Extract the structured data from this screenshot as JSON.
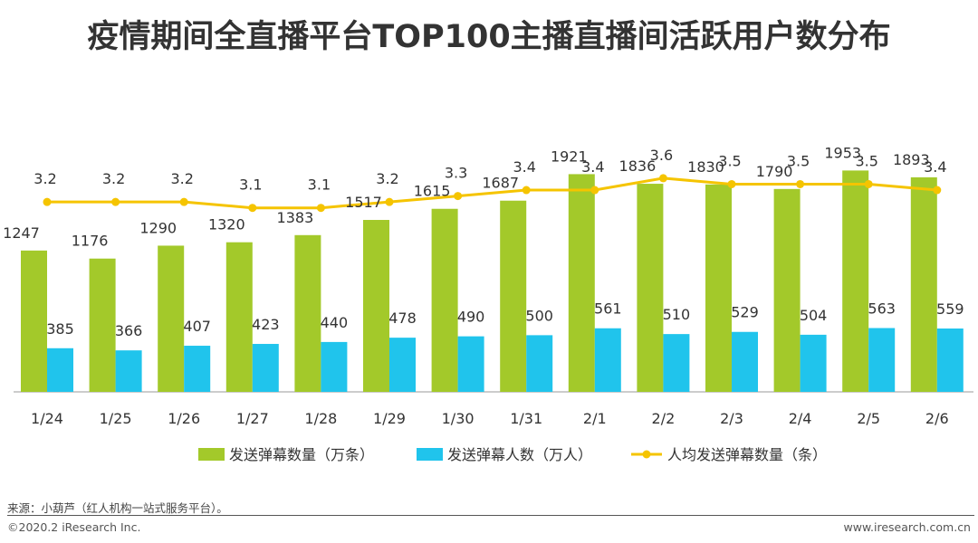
{
  "title": "疫情期间全直播平台TOP100主播直播间活跃用户数分布",
  "chart_data": {
    "type": "bar",
    "categories": [
      "1/24",
      "1/25",
      "1/26",
      "1/27",
      "1/28",
      "1/29",
      "1/30",
      "1/31",
      "2/1",
      "2/2",
      "2/3",
      "2/4",
      "2/5",
      "2/6"
    ],
    "series": [
      {
        "name": "发送弹幕数量（万条）",
        "type": "bar",
        "color": "#a3c92a",
        "values": [
          1247,
          1176,
          1290,
          1320,
          1383,
          1517,
          1615,
          1687,
          1921,
          1836,
          1830,
          1790,
          1953,
          1893
        ]
      },
      {
        "name": "发送弹幕人数（万人）",
        "type": "bar",
        "color": "#20c4ec",
        "values": [
          385,
          366,
          407,
          423,
          440,
          478,
          490,
          500,
          561,
          510,
          529,
          504,
          563,
          559
        ]
      },
      {
        "name": "人均发送弹幕数量（条）",
        "type": "line",
        "color": "#f5c400",
        "values": [
          3.2,
          3.2,
          3.2,
          3.1,
          3.1,
          3.2,
          3.3,
          3.4,
          3.4,
          3.6,
          3.5,
          3.5,
          3.5,
          3.4
        ]
      }
    ],
    "bar_ylim": [
      0,
      2100
    ],
    "line_ylim": [
      0,
      4.3
    ],
    "legend_position": "bottom"
  },
  "source": "来源：小葫芦（红人机构一站式服务平台）。",
  "copyright": "©2020.2 iResearch Inc.",
  "website": "www.iresearch.com.cn"
}
